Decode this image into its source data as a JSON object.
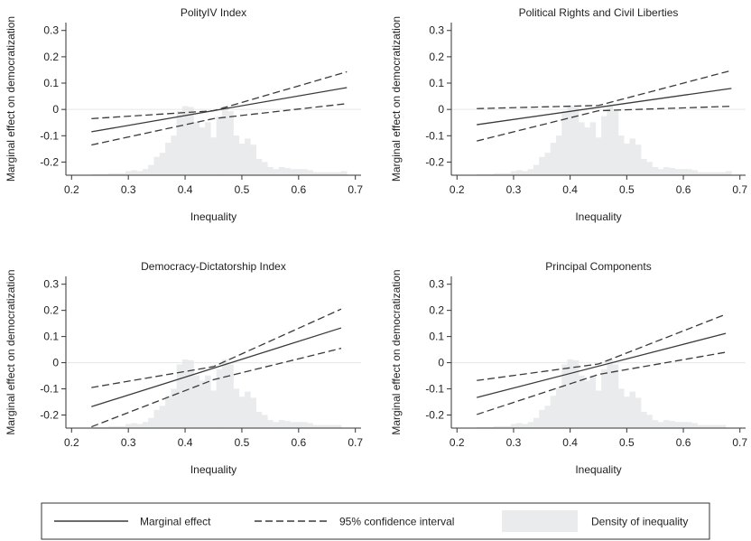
{
  "colors": {
    "line": "#3a3a3a",
    "density": "#eaebec",
    "zero_line": "#e6e6e6",
    "axis": "#333333",
    "background": "#ffffff"
  },
  "chart_data": [
    {
      "type": "line",
      "title": "PolityIV Index",
      "xlabel": "Inequality",
      "ylabel": "Marginal effect on democratization",
      "xlim": [
        0.19,
        0.71
      ],
      "ylim": [
        -0.25,
        0.33
      ],
      "xticks": [
        "0.2",
        "0.3",
        "0.4",
        "0.5",
        "0.6",
        "0.7"
      ],
      "yticks": [
        "0.3",
        "0.2",
        "0.1",
        "0",
        "-0.1",
        "-0.2"
      ],
      "series": [
        {
          "name": "Marginal effect",
          "x": [
            0.235,
            0.685
          ],
          "y": [
            -0.085,
            0.083
          ]
        },
        {
          "name": "95% confidence interval",
          "role": "upper",
          "x": [
            0.235,
            0.45,
            0.685
          ],
          "y": [
            -0.035,
            -0.005,
            0.143
          ]
        },
        {
          "name": "95% confidence interval",
          "role": "lower",
          "x": [
            0.235,
            0.45,
            0.685
          ],
          "y": [
            -0.135,
            -0.035,
            0.022
          ]
        }
      ],
      "density": {
        "name": "Density of inequality",
        "x_start": 0.235,
        "bin_width": 0.01,
        "heights": [
          0.007,
          0.007,
          0.007,
          0.013,
          0.013,
          0.013,
          0.027,
          0.033,
          0.027,
          0.04,
          0.067,
          0.12,
          0.147,
          0.213,
          0.26,
          0.42,
          0.453,
          0.447,
          0.347,
          0.313,
          0.347,
          0.247,
          0.387,
          0.453,
          0.42,
          0.26,
          0.207,
          0.24,
          0.2,
          0.107,
          0.087,
          0.053,
          0.04,
          0.053,
          0.047,
          0.04,
          0.04,
          0.04,
          0.033,
          0.02,
          0.02,
          0.02,
          0.02,
          0.02,
          0.027
        ]
      }
    },
    {
      "type": "line",
      "title": "Political Rights and Civil Liberties",
      "xlabel": "Inequality",
      "ylabel": "Marginal effect on democratization",
      "xlim": [
        0.19,
        0.71
      ],
      "ylim": [
        -0.25,
        0.33
      ],
      "xticks": [
        "0.2",
        "0.3",
        "0.4",
        "0.5",
        "0.6",
        "0.7"
      ],
      "yticks": [
        "0.3",
        "0.2",
        "0.1",
        "0",
        "-0.1",
        "-0.2"
      ],
      "series": [
        {
          "name": "Marginal effect",
          "x": [
            0.235,
            0.685
          ],
          "y": [
            -0.058,
            0.08
          ]
        },
        {
          "name": "95% confidence interval",
          "role": "upper",
          "x": [
            0.235,
            0.45,
            0.685
          ],
          "y": [
            0.003,
            0.015,
            0.148
          ]
        },
        {
          "name": "95% confidence interval",
          "role": "lower",
          "x": [
            0.235,
            0.45,
            0.685
          ],
          "y": [
            -0.12,
            -0.005,
            0.012
          ]
        }
      ],
      "density": {
        "name": "Density of inequality",
        "x_start": 0.235,
        "bin_width": 0.01,
        "heights": [
          0.007,
          0.007,
          0.007,
          0.013,
          0.013,
          0.013,
          0.027,
          0.033,
          0.027,
          0.04,
          0.067,
          0.12,
          0.147,
          0.213,
          0.26,
          0.42,
          0.453,
          0.447,
          0.347,
          0.313,
          0.347,
          0.247,
          0.387,
          0.453,
          0.42,
          0.26,
          0.207,
          0.24,
          0.2,
          0.107,
          0.087,
          0.053,
          0.04,
          0.053,
          0.047,
          0.04,
          0.04,
          0.04,
          0.033,
          0.02,
          0.02,
          0.02,
          0.02,
          0.02,
          0.027
        ]
      }
    },
    {
      "type": "line",
      "title": "Democracy-Dictatorship Index",
      "xlabel": "Inequality",
      "ylabel": "Marginal effect on democratization",
      "xlim": [
        0.19,
        0.71
      ],
      "ylim": [
        -0.25,
        0.33
      ],
      "xticks": [
        "0.2",
        "0.3",
        "0.4",
        "0.5",
        "0.6",
        "0.7"
      ],
      "yticks": [
        "0.3",
        "0.2",
        "0.1",
        "0",
        "-0.1",
        "-0.2"
      ],
      "series": [
        {
          "name": "Marginal effect",
          "x": [
            0.235,
            0.675
          ],
          "y": [
            -0.168,
            0.133
          ]
        },
        {
          "name": "95% confidence interval",
          "role": "upper",
          "x": [
            0.235,
            0.45,
            0.675
          ],
          "y": [
            -0.095,
            -0.015,
            0.205
          ]
        },
        {
          "name": "95% confidence interval",
          "role": "lower",
          "x": [
            0.235,
            0.45,
            0.675
          ],
          "y": [
            -0.245,
            -0.065,
            0.055
          ]
        }
      ],
      "density": {
        "name": "Density of inequality",
        "x_start": 0.235,
        "bin_width": 0.01,
        "heights": [
          0.007,
          0.007,
          0.007,
          0.013,
          0.013,
          0.013,
          0.027,
          0.033,
          0.027,
          0.04,
          0.067,
          0.12,
          0.147,
          0.213,
          0.26,
          0.42,
          0.453,
          0.447,
          0.347,
          0.313,
          0.347,
          0.247,
          0.387,
          0.453,
          0.42,
          0.26,
          0.207,
          0.24,
          0.2,
          0.107,
          0.087,
          0.053,
          0.04,
          0.053,
          0.047,
          0.04,
          0.04,
          0.04,
          0.033,
          0.02,
          0.02,
          0.02,
          0.02,
          0.02
        ]
      }
    },
    {
      "type": "line",
      "title": "Principal Components",
      "xlabel": "Inequality",
      "ylabel": "Marginal effect on democratization",
      "xlim": [
        0.19,
        0.71
      ],
      "ylim": [
        -0.25,
        0.33
      ],
      "xticks": [
        "0.2",
        "0.3",
        "0.4",
        "0.5",
        "0.6",
        "0.7"
      ],
      "yticks": [
        "0.3",
        "0.2",
        "0.1",
        "0",
        "-0.1",
        "-0.2"
      ],
      "series": [
        {
          "name": "Marginal effect",
          "x": [
            0.235,
            0.675
          ],
          "y": [
            -0.133,
            0.112
          ]
        },
        {
          "name": "95% confidence interval",
          "role": "upper",
          "x": [
            0.235,
            0.45,
            0.675
          ],
          "y": [
            -0.068,
            -0.005,
            0.185
          ]
        },
        {
          "name": "95% confidence interval",
          "role": "lower",
          "x": [
            0.235,
            0.45,
            0.675
          ],
          "y": [
            -0.198,
            -0.045,
            0.04
          ]
        }
      ],
      "density": {
        "name": "Density of inequality",
        "x_start": 0.235,
        "bin_width": 0.01,
        "heights": [
          0.007,
          0.007,
          0.007,
          0.013,
          0.013,
          0.013,
          0.027,
          0.033,
          0.027,
          0.04,
          0.067,
          0.12,
          0.147,
          0.213,
          0.26,
          0.42,
          0.453,
          0.447,
          0.347,
          0.313,
          0.347,
          0.247,
          0.387,
          0.453,
          0.42,
          0.26,
          0.207,
          0.24,
          0.2,
          0.107,
          0.087,
          0.053,
          0.04,
          0.053,
          0.047,
          0.04,
          0.04,
          0.04,
          0.033,
          0.02,
          0.02,
          0.02,
          0.02,
          0.02
        ]
      }
    }
  ],
  "legend": {
    "items": [
      {
        "label": "Marginal effect",
        "style": "solid"
      },
      {
        "label": "95% confidence interval",
        "style": "dashed"
      },
      {
        "label": "Density of inequality",
        "style": "area"
      }
    ]
  }
}
